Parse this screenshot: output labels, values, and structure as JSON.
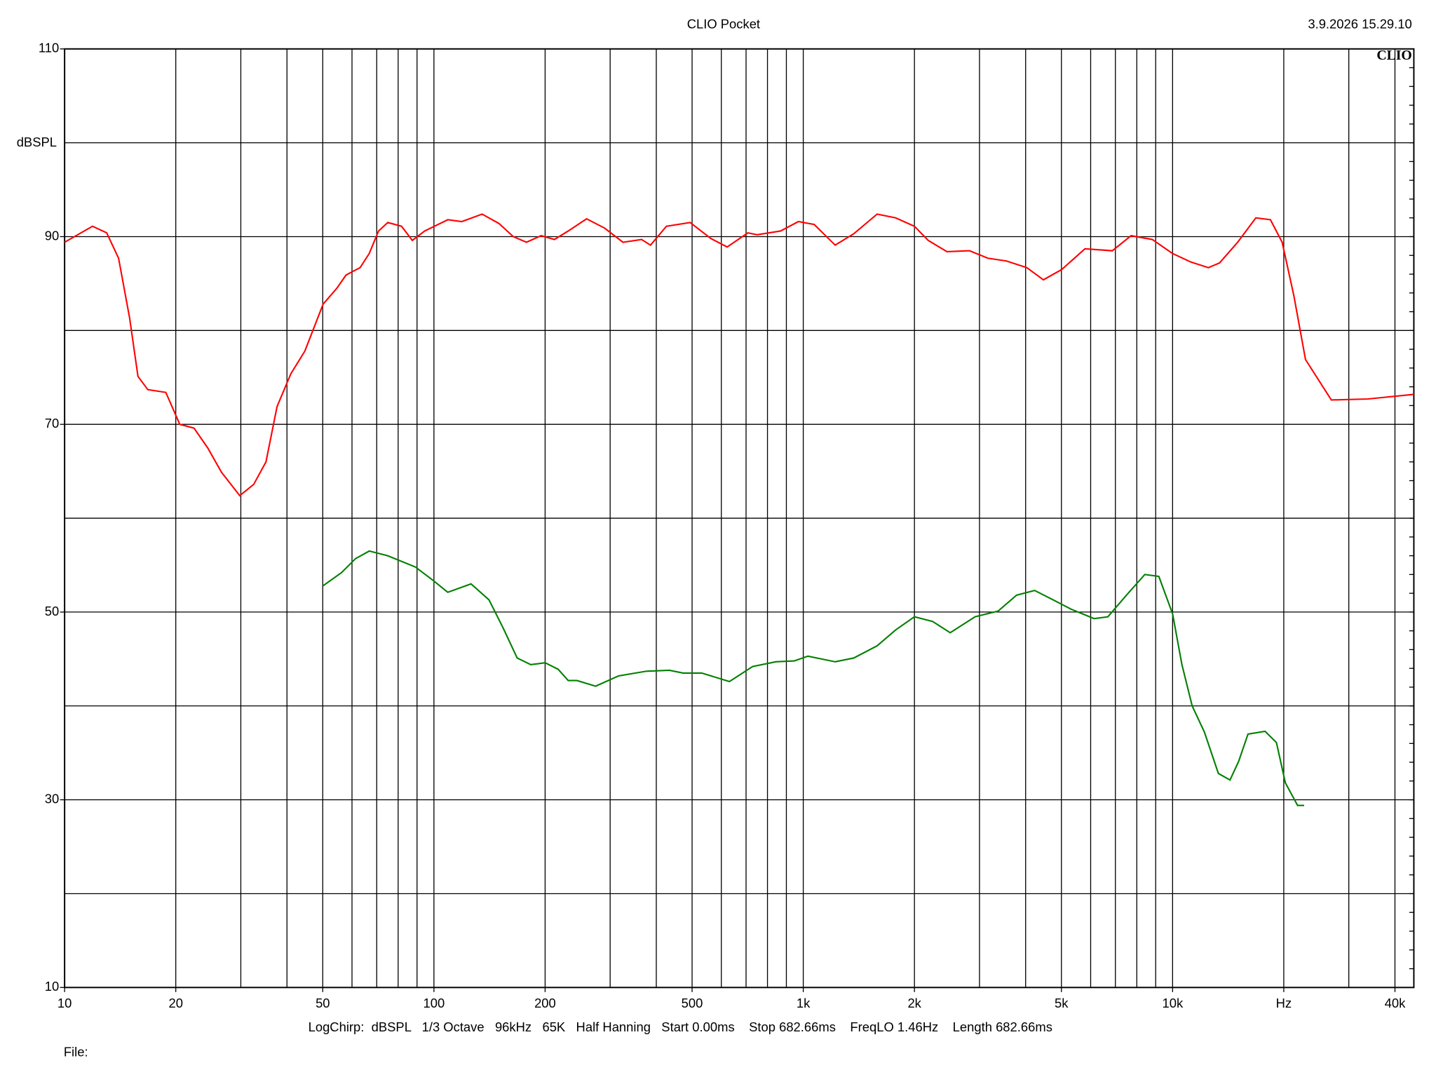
{
  "chart_data": {
    "type": "line",
    "title": "CLIO Pocket",
    "timestamp": "3.9.2026 15.29.10",
    "logo": "CLIO",
    "y_label": "dBSPL",
    "footer": "LogChirp:  dBSPL   1/3 Octave   96kHz   65K   Half Hanning   Start 0.00ms    Stop 682.66ms    FreqLO 1.46Hz    Length 682.66ms",
    "file_label": "File:",
    "xscale": "log",
    "grid": true,
    "xlim": [
      10,
      45000
    ],
    "ylim": [
      10,
      110
    ],
    "xticks": [
      10,
      20,
      50,
      100,
      200,
      500,
      {
        "value": 1000,
        "label": "1k"
      },
      {
        "value": 2000,
        "label": "2k"
      },
      {
        "value": 5000,
        "label": "5k"
      },
      {
        "value": 10000,
        "label": "10k"
      },
      {
        "value": 20000,
        "label": "Hz"
      },
      {
        "value": 40000,
        "label": "40k"
      }
    ],
    "xgrid": [
      20,
      30,
      40,
      50,
      60,
      70,
      80,
      90,
      100,
      200,
      300,
      400,
      500,
      600,
      700,
      800,
      900,
      1000,
      2000,
      3000,
      4000,
      5000,
      6000,
      7000,
      8000,
      9000,
      10000,
      20000,
      30000,
      40000
    ],
    "yticks": [
      10,
      30,
      50,
      70,
      90,
      110
    ],
    "ygrid": [
      20,
      30,
      40,
      50,
      60,
      70,
      80,
      90,
      100
    ],
    "series": [
      {
        "color": "#ff0000",
        "x": [
          10,
          11.9,
          13,
          14,
          15,
          15.8,
          16.8,
          18.8,
          20.5,
          22.4,
          24.4,
          26.6,
          29.8,
          32.5,
          35.1,
          37.6,
          41,
          44.7,
          50.1,
          54.6,
          57.8,
          63.1,
          66.8,
          70.8,
          75,
          81.7,
          87.4,
          94.4,
          109,
          119,
          135,
          150,
          164,
          178,
          195,
          212,
          231,
          259,
          290,
          325,
          365,
          386,
          426,
          494,
          562,
          622,
          708,
          750,
          868,
          970,
          1070,
          1220,
          1370,
          1585,
          1780,
          2000,
          2180,
          2450,
          2820,
          3160,
          3550,
          4030,
          4470,
          5010,
          5790,
          6870,
          7720,
          8810,
          10000,
          11200,
          12500,
          13400,
          15000,
          16800,
          18400,
          19800,
          21300,
          22900,
          26900,
          33800,
          45000
        ],
        "values": [
          89.4,
          91.1,
          90.4,
          87.7,
          81.3,
          75.1,
          73.7,
          73.4,
          70.0,
          69.6,
          67.5,
          64.9,
          62.4,
          63.6,
          66.0,
          71.9,
          75.4,
          77.8,
          82.8,
          84.5,
          85.9,
          86.7,
          88.2,
          90.6,
          91.5,
          91.1,
          89.6,
          90.6,
          91.8,
          91.6,
          92.4,
          91.4,
          90.0,
          89.4,
          90.1,
          89.7,
          90.6,
          91.9,
          90.9,
          89.4,
          89.7,
          89.1,
          91.1,
          91.5,
          89.8,
          88.9,
          90.4,
          90.2,
          90.6,
          91.6,
          91.3,
          89.1,
          90.3,
          92.4,
          92.0,
          91.1,
          89.6,
          88.4,
          88.5,
          87.7,
          87.4,
          86.7,
          85.4,
          86.5,
          88.7,
          88.5,
          90.1,
          89.7,
          88.2,
          87.3,
          86.7,
          87.2,
          89.4,
          92.0,
          91.8,
          89.4,
          83.7,
          76.9,
          72.6,
          72.7,
          73.2
        ]
      },
      {
        "color": "#008000",
        "x": [
          50.1,
          56.2,
          61.4,
          66.8,
          75,
          89.1,
          100,
          109,
          126,
          141,
          154,
          168,
          183,
          200,
          217,
          231,
          244,
          274,
          316,
          376,
          434,
          473,
          531,
          631,
          729,
          843,
          946,
          1030,
          1220,
          1370,
          1585,
          1780,
          2000,
          2240,
          2500,
          2920,
          3370,
          3780,
          4230,
          4750,
          5310,
          6130,
          6680,
          7500,
          8410,
          9180,
          10000,
          10600,
          11300,
          12200,
          13300,
          14300,
          15100,
          16000,
          17800,
          19100,
          20200,
          21800,
          22700
        ],
        "values": [
          52.8,
          54.2,
          55.7,
          56.5,
          56.0,
          54.8,
          53.3,
          52.1,
          53.0,
          51.3,
          48.3,
          45.1,
          44.4,
          44.6,
          43.9,
          42.7,
          42.7,
          42.1,
          43.2,
          43.7,
          43.8,
          43.5,
          43.5,
          42.6,
          44.2,
          44.7,
          44.8,
          45.3,
          44.7,
          45.1,
          46.4,
          48.1,
          49.5,
          49.0,
          47.8,
          49.5,
          50.1,
          51.8,
          52.3,
          51.3,
          50.3,
          49.3,
          49.5,
          51.8,
          54.0,
          53.8,
          49.8,
          44.4,
          40.0,
          37.2,
          32.8,
          32.1,
          34.1,
          37.0,
          37.3,
          36.1,
          31.8,
          29.4,
          29.4
        ]
      }
    ]
  }
}
